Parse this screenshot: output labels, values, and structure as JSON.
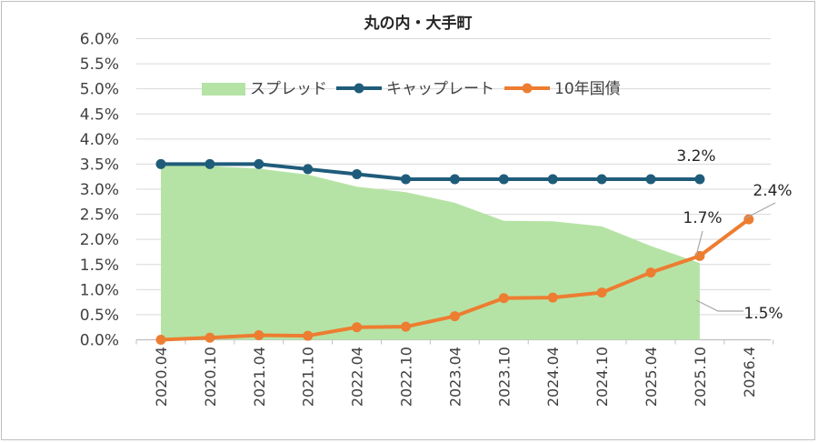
{
  "chart_data": {
    "type": "line",
    "title": "丸の内・大手町",
    "categories": [
      "2020.04",
      "2020.10",
      "2021.04",
      "2021.10",
      "2022.04",
      "2022.10",
      "2023.04",
      "2023.10",
      "2024.04",
      "2024.10",
      "2025.04",
      "2025.10",
      "2026.4"
    ],
    "y_ticks": [
      "0.0%",
      "0.5%",
      "1.0%",
      "1.5%",
      "2.0%",
      "2.5%",
      "3.0%",
      "3.5%",
      "4.0%",
      "4.5%",
      "5.0%",
      "5.5%",
      "6.0%"
    ],
    "ylim": [
      0,
      6
    ],
    "legend_position": "top",
    "series": [
      {
        "name": "スプレッド",
        "kind": "area",
        "color": "#b5e3a5",
        "values": [
          3.5,
          3.46,
          3.41,
          3.29,
          3.05,
          2.94,
          2.73,
          2.37,
          2.36,
          2.26,
          1.87,
          1.53,
          null
        ]
      },
      {
        "name": "キャップレート",
        "kind": "line",
        "color": "#1f5c7a",
        "values": [
          3.5,
          3.5,
          3.5,
          3.4,
          3.3,
          3.2,
          3.2,
          3.2,
          3.2,
          3.2,
          3.2,
          3.2,
          null
        ]
      },
      {
        "name": "10年国債",
        "kind": "line",
        "color": "#ed7d31",
        "values": [
          0.0,
          0.04,
          0.09,
          0.08,
          0.25,
          0.26,
          0.47,
          0.83,
          0.84,
          0.94,
          1.34,
          1.67,
          2.4
        ]
      }
    ],
    "annotations": [
      {
        "label": "3.2%"
      },
      {
        "label": "2.4%"
      },
      {
        "label": "1.7%"
      },
      {
        "label": "1.5%"
      }
    ]
  }
}
